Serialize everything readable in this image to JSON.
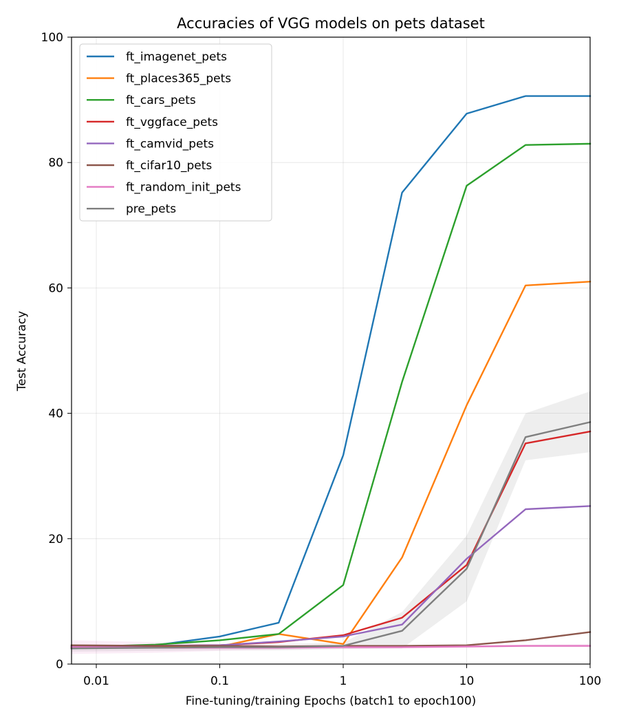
{
  "chart_data": {
    "type": "line",
    "title": "Accuracies of VGG models on pets dataset",
    "xlabel": "Fine-tuning/training Epochs (batch1 to epoch100)",
    "ylabel": "Test Accuracy",
    "xscale": "log",
    "xlim": [
      0.0063,
      100
    ],
    "ylim": [
      0,
      100
    ],
    "xticks": [
      0.01,
      0.1,
      1,
      10,
      100
    ],
    "xtick_labels": [
      "0.01",
      "0.1",
      "1",
      "10",
      "100"
    ],
    "yticks": [
      0,
      20,
      40,
      60,
      80,
      100
    ],
    "ytick_labels": [
      "0",
      "20",
      "40",
      "60",
      "80",
      "100"
    ],
    "grid": true,
    "legend_position": "top-left",
    "x": [
      0.0063,
      0.03,
      0.1,
      0.3,
      1,
      3,
      10,
      30,
      100
    ],
    "series": [
      {
        "name": "ft_imagenet_pets",
        "color": "#1f77b4",
        "values": [
          2.5,
          3.0,
          4.4,
          6.6,
          33.3,
          75.2,
          87.8,
          90.6,
          90.6
        ]
      },
      {
        "name": "ft_places365_pets",
        "color": "#ff7f0e",
        "values": [
          2.6,
          2.7,
          2.8,
          4.8,
          3.2,
          17.0,
          41.3,
          60.4,
          61.0
        ]
      },
      {
        "name": "ft_cars_pets",
        "color": "#2ca02c",
        "values": [
          2.7,
          3.1,
          3.8,
          4.8,
          12.6,
          45.0,
          76.3,
          82.8,
          83.0
        ]
      },
      {
        "name": "ft_vggface_pets",
        "color": "#d62728",
        "values": [
          2.8,
          2.9,
          3.0,
          3.5,
          4.6,
          7.4,
          15.8,
          35.2,
          37.1
        ]
      },
      {
        "name": "ft_camvid_pets",
        "color": "#9467bd",
        "values": [
          2.8,
          2.9,
          3.0,
          3.6,
          4.4,
          6.3,
          16.8,
          24.7,
          25.2
        ]
      },
      {
        "name": "ft_cifar10_pets",
        "color": "#8c564b",
        "values": [
          3.0,
          2.9,
          2.9,
          2.8,
          2.9,
          2.9,
          3.0,
          3.8,
          5.1
        ]
      },
      {
        "name": "ft_random_init_pets",
        "color": "#e377c2",
        "values": [
          2.7,
          2.6,
          2.6,
          2.6,
          2.7,
          2.7,
          2.8,
          2.9,
          2.9
        ]
      },
      {
        "name": "pre_pets",
        "color": "#7f7f7f",
        "values": [
          2.5,
          2.6,
          2.7,
          2.7,
          2.9,
          5.3,
          15.2,
          36.2,
          38.6
        ]
      }
    ],
    "bands": [
      {
        "series": "pre_pets",
        "color": "#7f7f7f",
        "lower": [
          2.0,
          2.1,
          2.2,
          2.2,
          2.4,
          2.5,
          10.0,
          32.5,
          33.8
        ],
        "upper": [
          3.0,
          3.1,
          3.2,
          3.2,
          3.4,
          8.3,
          20.5,
          40.0,
          43.5
        ]
      },
      {
        "series": "ft_random_init_pets",
        "color": "#e377c2",
        "lower": [
          1.6,
          1.8,
          2.1,
          2.3,
          2.4,
          2.5,
          2.6,
          2.7,
          2.7
        ],
        "upper": [
          3.8,
          3.5,
          3.2,
          3.0,
          3.0,
          2.9,
          3.0,
          3.1,
          3.2
        ]
      }
    ]
  }
}
